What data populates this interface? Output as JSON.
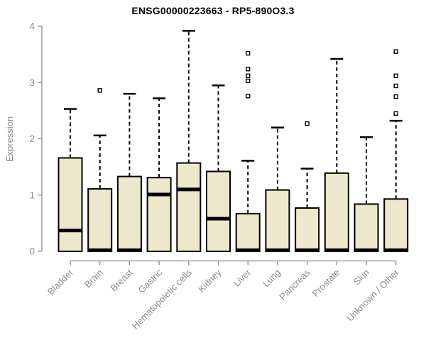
{
  "chart_data": {
    "type": "boxplot",
    "title": "ENSG00000223663 - RP5-890O3.3",
    "ylabel": "Expression",
    "ylim": [
      0,
      4
    ],
    "yticks": [
      0,
      1,
      2,
      3,
      4
    ],
    "grid": false,
    "legend_position": "none",
    "categories": [
      "Bladder",
      "Brain",
      "Breast",
      "Gastric",
      "Hematopoietic cells",
      "Kidney",
      "Liver",
      "Lung",
      "Pancreas",
      "Prostate",
      "Skin",
      "Unknown / Other"
    ],
    "boxes": [
      {
        "category": "Bladder",
        "whisker_low": 0,
        "q1": 0,
        "median": 0.37,
        "q3": 1.66,
        "whisker_high": 2.53,
        "outliers": []
      },
      {
        "category": "Brain",
        "whisker_low": 0,
        "q1": 0,
        "median": 0.02,
        "q3": 1.11,
        "whisker_high": 2.06,
        "outliers": [
          2.86
        ]
      },
      {
        "category": "Breast",
        "whisker_low": 0,
        "q1": 0,
        "median": 0.02,
        "q3": 1.33,
        "whisker_high": 2.8,
        "outliers": []
      },
      {
        "category": "Gastric",
        "whisker_low": 0,
        "q1": 0,
        "median": 1.01,
        "q3": 1.31,
        "whisker_high": 2.72,
        "outliers": []
      },
      {
        "category": "Hematopoietic cells",
        "whisker_low": 0,
        "q1": 0,
        "median": 1.1,
        "q3": 1.57,
        "whisker_high": 3.92,
        "outliers": []
      },
      {
        "category": "Kidney",
        "whisker_low": 0,
        "q1": 0,
        "median": 0.58,
        "q3": 1.42,
        "whisker_high": 2.95,
        "outliers": []
      },
      {
        "category": "Liver",
        "whisker_low": 0,
        "q1": 0,
        "median": 0.02,
        "q3": 0.67,
        "whisker_high": 1.61,
        "outliers": [
          3.52,
          3.24,
          3.12,
          3.03,
          2.76
        ]
      },
      {
        "category": "Lung",
        "whisker_low": 0,
        "q1": 0,
        "median": 0.02,
        "q3": 1.09,
        "whisker_high": 2.2,
        "outliers": []
      },
      {
        "category": "Pancreas",
        "whisker_low": 0,
        "q1": 0,
        "median": 0.02,
        "q3": 0.77,
        "whisker_high": 1.47,
        "outliers": [
          2.27
        ]
      },
      {
        "category": "Prostate",
        "whisker_low": 0,
        "q1": 0,
        "median": 0.02,
        "q3": 1.39,
        "whisker_high": 3.42,
        "outliers": []
      },
      {
        "category": "Skin",
        "whisker_low": 0,
        "q1": 0,
        "median": 0.02,
        "q3": 0.84,
        "whisker_high": 2.03,
        "outliers": []
      },
      {
        "category": "Unknown / Other",
        "whisker_low": 0,
        "q1": 0,
        "median": 0.02,
        "q3": 0.93,
        "whisker_high": 2.32,
        "outliers": [
          3.55,
          3.12,
          2.94,
          2.75,
          2.45
        ]
      }
    ],
    "colors": {
      "box_fill": "#EDE8CC",
      "box_border": "#000000",
      "median": "#000000",
      "whisker": "#000000",
      "outlier_fill": "#FFFFFF",
      "outlier_border": "#000000",
      "axis": "#8C8C8C",
      "tick_label": "#8C8C8C",
      "title": "#000000"
    }
  }
}
